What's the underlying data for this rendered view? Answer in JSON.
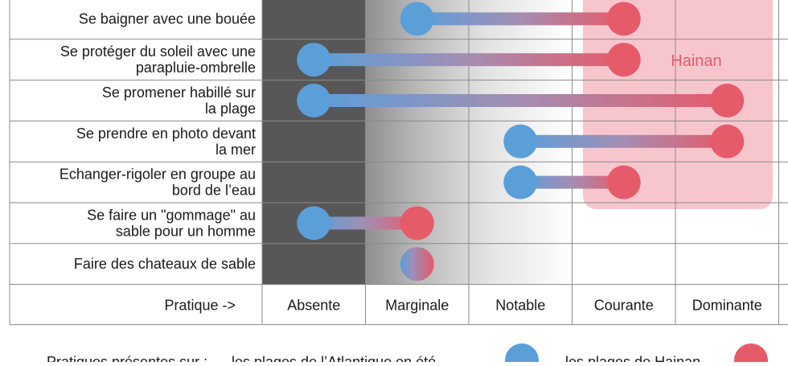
{
  "chart_data": {
    "type": "dumbbell",
    "row_header": "Pratique ->",
    "levels": [
      "Absente",
      "Marginale",
      "Notable",
      "Courante",
      "Dominante"
    ],
    "rows": [
      {
        "label": [
          "Se baigner avec une bouée"
        ],
        "atlantique": 2.5,
        "hainan": 4.5
      },
      {
        "label": [
          "Se protéger du soleil avec une",
          "parapluie-ombrelle"
        ],
        "atlantique": 1.5,
        "hainan": 4.5
      },
      {
        "label": [
          "Se promener habillé sur",
          "la plage"
        ],
        "atlantique": 1.5,
        "hainan": 5.5
      },
      {
        "label": [
          "Se prendre en photo devant",
          "la mer"
        ],
        "atlantique": 3.5,
        "hainan": 5.5
      },
      {
        "label": [
          "Echanger-rigoler en groupe au",
          "bord de l’eau"
        ],
        "atlantique": 3.5,
        "hainan": 4.5
      },
      {
        "label": [
          "Se faire un \"gommage\" au",
          "sable pour un homme"
        ],
        "atlantique": 1.5,
        "hainan": 2.5
      },
      {
        "label": [
          "Faire des chateaux de sable"
        ],
        "atlantique": 2.5,
        "hainan": 2.5
      }
    ],
    "annotation": "Hainan",
    "legend": {
      "prefix": "Pratiques présentes sur :",
      "atlantique_label": "les plages de l’Atlantique en été",
      "hainan_label": "les plages de Hainan"
    },
    "colors": {
      "atlantique": "#5b9fd9",
      "hainan": "#e65b6a",
      "highlight": "#f7c6cd",
      "grid": "#8a8a8a"
    }
  }
}
